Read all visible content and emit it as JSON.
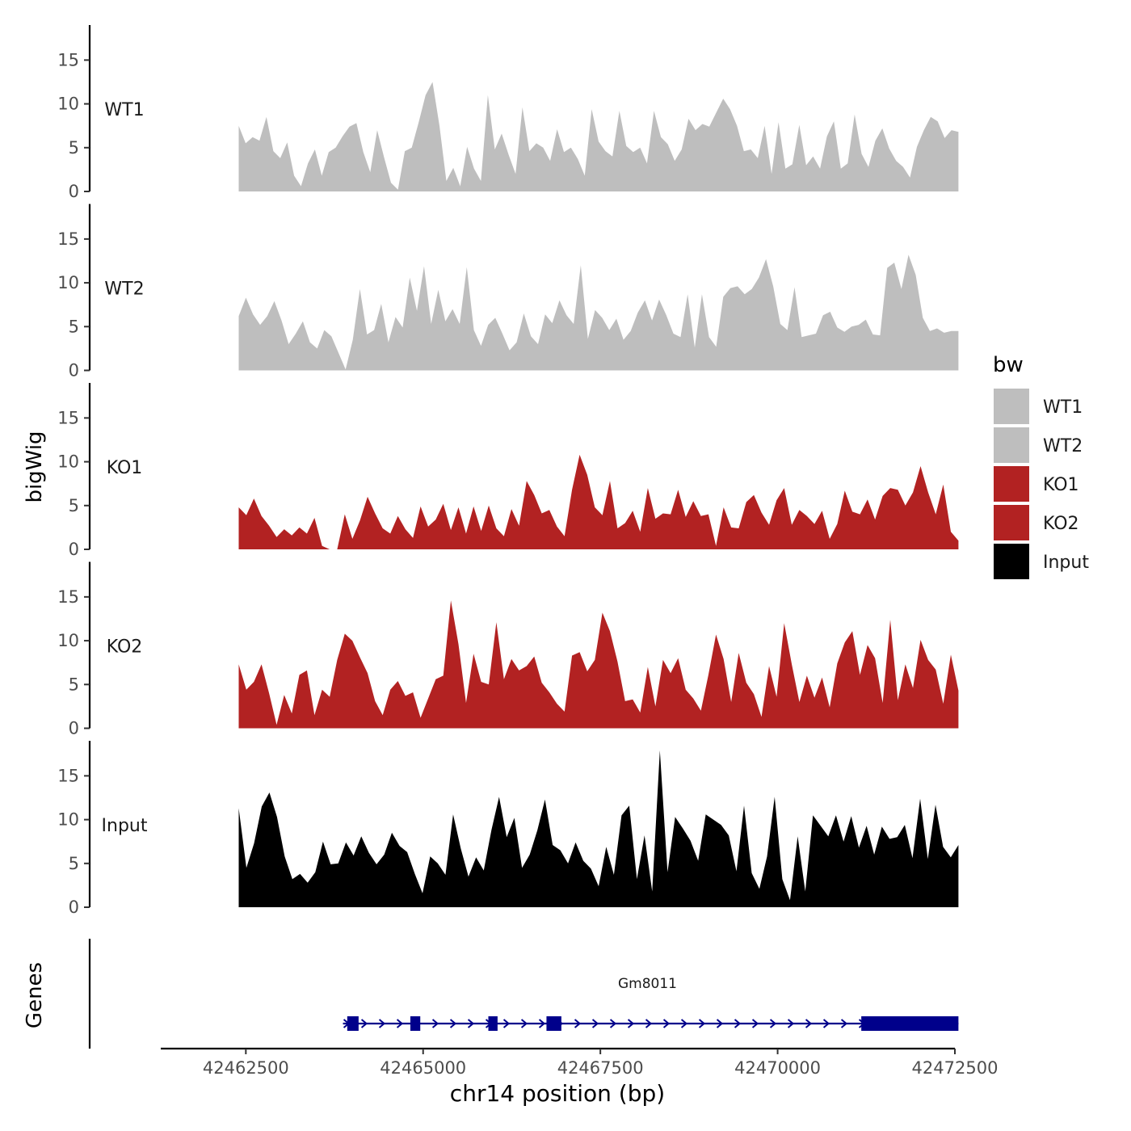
{
  "chart_data": {
    "type": "area",
    "ylabel": "bigWig",
    "genes_label": "Genes",
    "xlabel": "chr14 position (bp)",
    "xlim": [
      42461300,
      42472500
    ],
    "data_range": [
      42462400,
      42472550
    ],
    "x_ticks": [
      42462500,
      42465000,
      42467500,
      42470000,
      42472500
    ],
    "x_tick_labels": [
      "42462500",
      "42465000",
      "42467500",
      "42470000",
      "42472500"
    ],
    "ylim": [
      0,
      19
    ],
    "y_ticks": [
      0,
      5,
      10,
      15
    ],
    "y_tick_labels": [
      "0",
      "5",
      "10",
      "15"
    ],
    "legend": {
      "title": "bw",
      "entries": [
        {
          "label": "WT1",
          "color": "#bebebe"
        },
        {
          "label": "WT2",
          "color": "#bebebe"
        },
        {
          "label": "KO1",
          "color": "#b22222"
        },
        {
          "label": "KO2",
          "color": "#b22222"
        },
        {
          "label": "Input",
          "color": "#000000"
        }
      ]
    },
    "tracks": [
      {
        "name": "WT1",
        "color": "#bebebe",
        "values": [
          7.5,
          5.5,
          6.2,
          5.8,
          8.5,
          4.6,
          3.8,
          5.6,
          1.8,
          0.6,
          3.2,
          4.8,
          1.8,
          4.5,
          5.0,
          6.3,
          7.4,
          7.8,
          4.5,
          2.2,
          7.0,
          3.9,
          1.0,
          0.2,
          4.6,
          5.0,
          7.9,
          11.0,
          12.5,
          7.5,
          1.2,
          2.7,
          0.6,
          5.1,
          2.6,
          1.2,
          11.0,
          4.8,
          6.6,
          4.2,
          2.0,
          9.6,
          4.6,
          5.5,
          5.0,
          3.5,
          7.1,
          4.5,
          5.0,
          3.7,
          1.8,
          9.4,
          5.7,
          4.6,
          4.0,
          9.2,
          5.2,
          4.5,
          5.0,
          3.2,
          9.2,
          6.2,
          5.4,
          3.5,
          4.8,
          8.3,
          7.0,
          7.7,
          7.4,
          9.0,
          10.6,
          9.4,
          7.5,
          4.6,
          4.8,
          3.8,
          7.5,
          2.0,
          7.9,
          2.6,
          3.1,
          7.6,
          3.0,
          4.0,
          2.6,
          6.3,
          8.0,
          2.6,
          3.2,
          8.8,
          4.3,
          2.8,
          5.8,
          7.2,
          4.9,
          3.5,
          2.8,
          1.6,
          5.1,
          7.0,
          8.5,
          8.0,
          6.1,
          7.0,
          6.8
        ]
      },
      {
        "name": "WT2",
        "color": "#bebebe",
        "values": [
          6.2,
          8.3,
          6.4,
          5.2,
          6.2,
          7.9,
          5.7,
          3.0,
          4.2,
          5.6,
          3.2,
          2.5,
          4.6,
          3.9,
          2.0,
          0.1,
          3.5,
          9.3,
          4.1,
          4.6,
          7.6,
          3.2,
          6.1,
          4.9,
          10.6,
          6.8,
          11.9,
          5.3,
          9.2,
          5.6,
          7.0,
          5.3,
          11.8,
          4.6,
          2.8,
          5.2,
          6.0,
          4.2,
          2.3,
          3.2,
          6.5,
          3.9,
          3.0,
          6.4,
          5.4,
          8.0,
          6.3,
          5.3,
          12.0,
          3.6,
          6.9,
          6.0,
          4.6,
          5.9,
          3.5,
          4.5,
          6.6,
          8.0,
          5.7,
          8.1,
          6.3,
          4.2,
          3.8,
          8.7,
          2.6,
          8.7,
          3.8,
          2.7,
          8.4,
          9.4,
          9.6,
          8.7,
          9.3,
          10.6,
          12.7,
          9.6,
          5.3,
          4.6,
          9.5,
          3.8,
          4.0,
          4.2,
          6.3,
          6.7,
          4.9,
          4.4,
          5.0,
          5.2,
          5.8,
          4.1,
          4.0,
          11.7,
          12.3,
          9.3,
          13.2,
          10.9,
          6.0,
          4.5,
          4.8,
          4.3,
          4.5,
          4.5
        ]
      },
      {
        "name": "KO1",
        "color": "#b22222",
        "values": [
          4.8,
          3.9,
          5.8,
          3.8,
          2.7,
          1.4,
          2.3,
          1.6,
          2.5,
          1.8,
          3.6,
          0.4,
          0.0,
          0.0,
          4.0,
          1.2,
          3.3,
          6.0,
          4.1,
          2.4,
          1.8,
          3.8,
          2.3,
          1.3,
          4.9,
          2.6,
          3.4,
          5.2,
          2.2,
          4.8,
          1.8,
          4.9,
          2.1,
          5.0,
          2.4,
          1.5,
          4.6,
          2.7,
          7.8,
          6.2,
          4.1,
          4.5,
          2.6,
          1.5,
          6.8,
          10.8,
          8.5,
          4.8,
          3.9,
          7.8,
          2.4,
          3.0,
          4.4,
          2.0,
          7.0,
          3.5,
          4.1,
          4.0,
          6.8,
          3.7,
          5.5,
          3.8,
          4.0,
          0.4,
          4.8,
          2.5,
          2.4,
          5.4,
          6.2,
          4.2,
          2.8,
          5.6,
          7.0,
          2.8,
          4.5,
          3.8,
          2.9,
          4.4,
          1.2,
          2.9,
          6.7,
          4.3,
          4.0,
          5.7,
          3.4,
          6.1,
          7.0,
          6.8,
          5.0,
          6.5,
          9.5,
          6.5,
          4.0,
          7.4,
          2.0,
          1.0
        ]
      },
      {
        "name": "KO2",
        "color": "#b22222",
        "values": [
          7.3,
          4.4,
          5.3,
          7.3,
          4.0,
          0.4,
          3.8,
          1.7,
          6.1,
          6.6,
          1.5,
          4.4,
          3.6,
          7.8,
          10.8,
          10.0,
          8.1,
          6.3,
          3.1,
          1.5,
          4.4,
          5.4,
          3.7,
          4.1,
          1.2,
          3.4,
          5.6,
          6.0,
          14.6,
          9.6,
          2.9,
          8.5,
          5.3,
          5.0,
          12.1,
          5.6,
          7.9,
          6.6,
          7.1,
          8.2,
          5.2,
          4.1,
          2.8,
          1.9,
          8.3,
          8.7,
          6.5,
          7.8,
          13.2,
          11.1,
          7.6,
          3.1,
          3.3,
          1.8,
          7.0,
          2.5,
          7.8,
          6.3,
          8.0,
          4.4,
          3.4,
          2.0,
          6.1,
          10.7,
          7.9,
          3.0,
          8.6,
          5.2,
          3.9,
          1.3,
          7.1,
          3.6,
          12.0,
          7.3,
          3.0,
          6.0,
          3.5,
          5.8,
          2.4,
          7.4,
          9.8,
          11.1,
          6.1,
          9.5,
          8.0,
          2.9,
          12.4,
          3.2,
          7.3,
          4.6,
          10.1,
          7.8,
          6.7,
          2.8,
          8.4,
          4.3
        ]
      },
      {
        "name": "Input",
        "color": "#000000",
        "values": [
          11.3,
          4.5,
          7.3,
          11.5,
          13.1,
          10.3,
          5.8,
          3.2,
          3.8,
          2.8,
          4.0,
          7.5,
          4.9,
          5.0,
          7.4,
          5.9,
          8.1,
          6.2,
          4.9,
          6.0,
          8.5,
          7.0,
          6.3,
          3.8,
          1.6,
          5.8,
          5.0,
          3.7,
          10.6,
          6.7,
          3.5,
          5.7,
          4.2,
          8.8,
          12.6,
          8.0,
          10.2,
          4.5,
          6.0,
          8.8,
          12.3,
          7.1,
          6.5,
          5.0,
          7.4,
          5.3,
          4.4,
          2.4,
          6.9,
          3.7,
          10.5,
          11.6,
          3.2,
          8.2,
          1.8,
          17.9,
          4.0,
          10.3,
          9.0,
          7.6,
          5.3,
          10.6,
          10.0,
          9.4,
          8.2,
          4.1,
          11.6,
          3.9,
          2.1,
          5.8,
          12.6,
          3.2,
          0.8,
          8.1,
          1.8,
          10.5,
          9.3,
          8.1,
          10.5,
          7.5,
          10.4,
          6.8,
          9.3,
          6.0,
          9.2,
          7.8,
          8.0,
          9.4,
          5.6,
          12.4,
          5.5,
          11.7,
          6.9,
          5.7,
          7.1
        ]
      }
    ],
    "genes": [
      {
        "name": "Gm8011",
        "color": "#00008b",
        "strand": "+",
        "start": 42463870,
        "end": 42472550,
        "exons": [
          [
            42463930,
            42464090
          ],
          [
            42464820,
            42464960
          ],
          [
            42465920,
            42466050
          ],
          [
            42466740,
            42466950
          ],
          [
            42471180,
            42472550
          ]
        ]
      }
    ]
  }
}
